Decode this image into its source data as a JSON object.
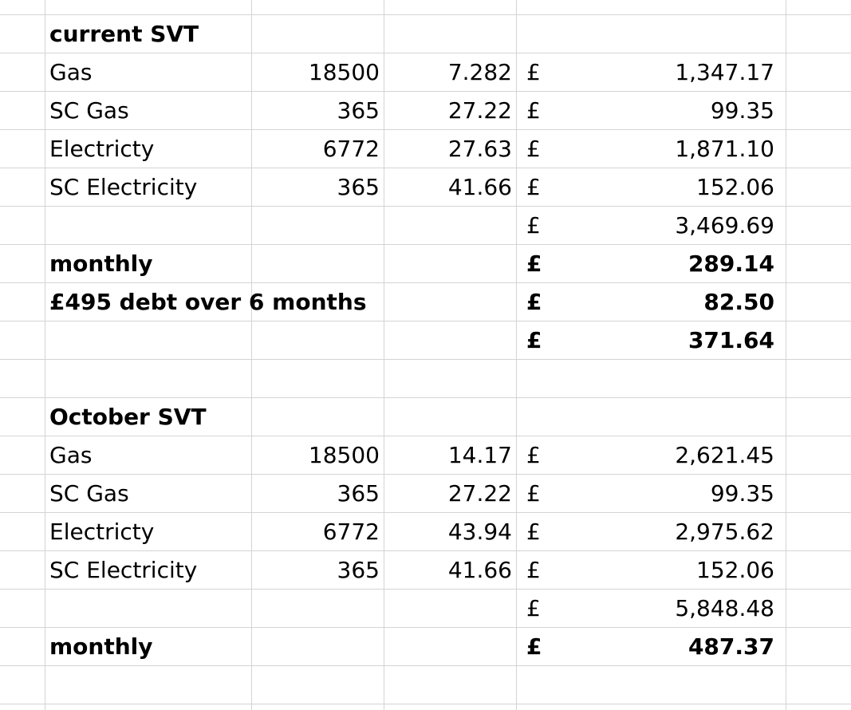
{
  "sections": [
    {
      "title": "current SVT",
      "rows": [
        {
          "label": "Gas",
          "qty": "18500",
          "rate": "7.282",
          "cur": "£",
          "amount": "1,347.17"
        },
        {
          "label": "SC Gas",
          "qty": "365",
          "rate": "27.22",
          "cur": "£",
          "amount": "99.35"
        },
        {
          "label": "Electricty",
          "qty": "6772",
          "rate": "27.63",
          "cur": "£",
          "amount": "1,871.10"
        },
        {
          "label": "SC Electricity",
          "qty": "365",
          "rate": "41.66",
          "cur": "£",
          "amount": "152.06"
        }
      ],
      "total": {
        "cur": "£",
        "amount": "3,469.69"
      },
      "monthly": {
        "label": "monthly",
        "cur": "£",
        "amount": "289.14"
      },
      "debt": {
        "label": "£495 debt over 6 months",
        "cur": "£",
        "amount": "82.50"
      },
      "grand": {
        "cur": "£",
        "amount": "371.64"
      }
    },
    {
      "title": "October SVT",
      "rows": [
        {
          "label": "Gas",
          "qty": "18500",
          "rate": "14.17",
          "cur": "£",
          "amount": "2,621.45"
        },
        {
          "label": "SC Gas",
          "qty": "365",
          "rate": "27.22",
          "cur": "£",
          "amount": "99.35"
        },
        {
          "label": "Electricty",
          "qty": "6772",
          "rate": "43.94",
          "cur": "£",
          "amount": "2,975.62"
        },
        {
          "label": "SC Electricity",
          "qty": "365",
          "rate": "41.66",
          "cur": "£",
          "amount": "152.06"
        }
      ],
      "total": {
        "cur": "£",
        "amount": "5,848.48"
      },
      "monthly": {
        "label": "monthly",
        "cur": "£",
        "amount": "487.37"
      }
    }
  ]
}
